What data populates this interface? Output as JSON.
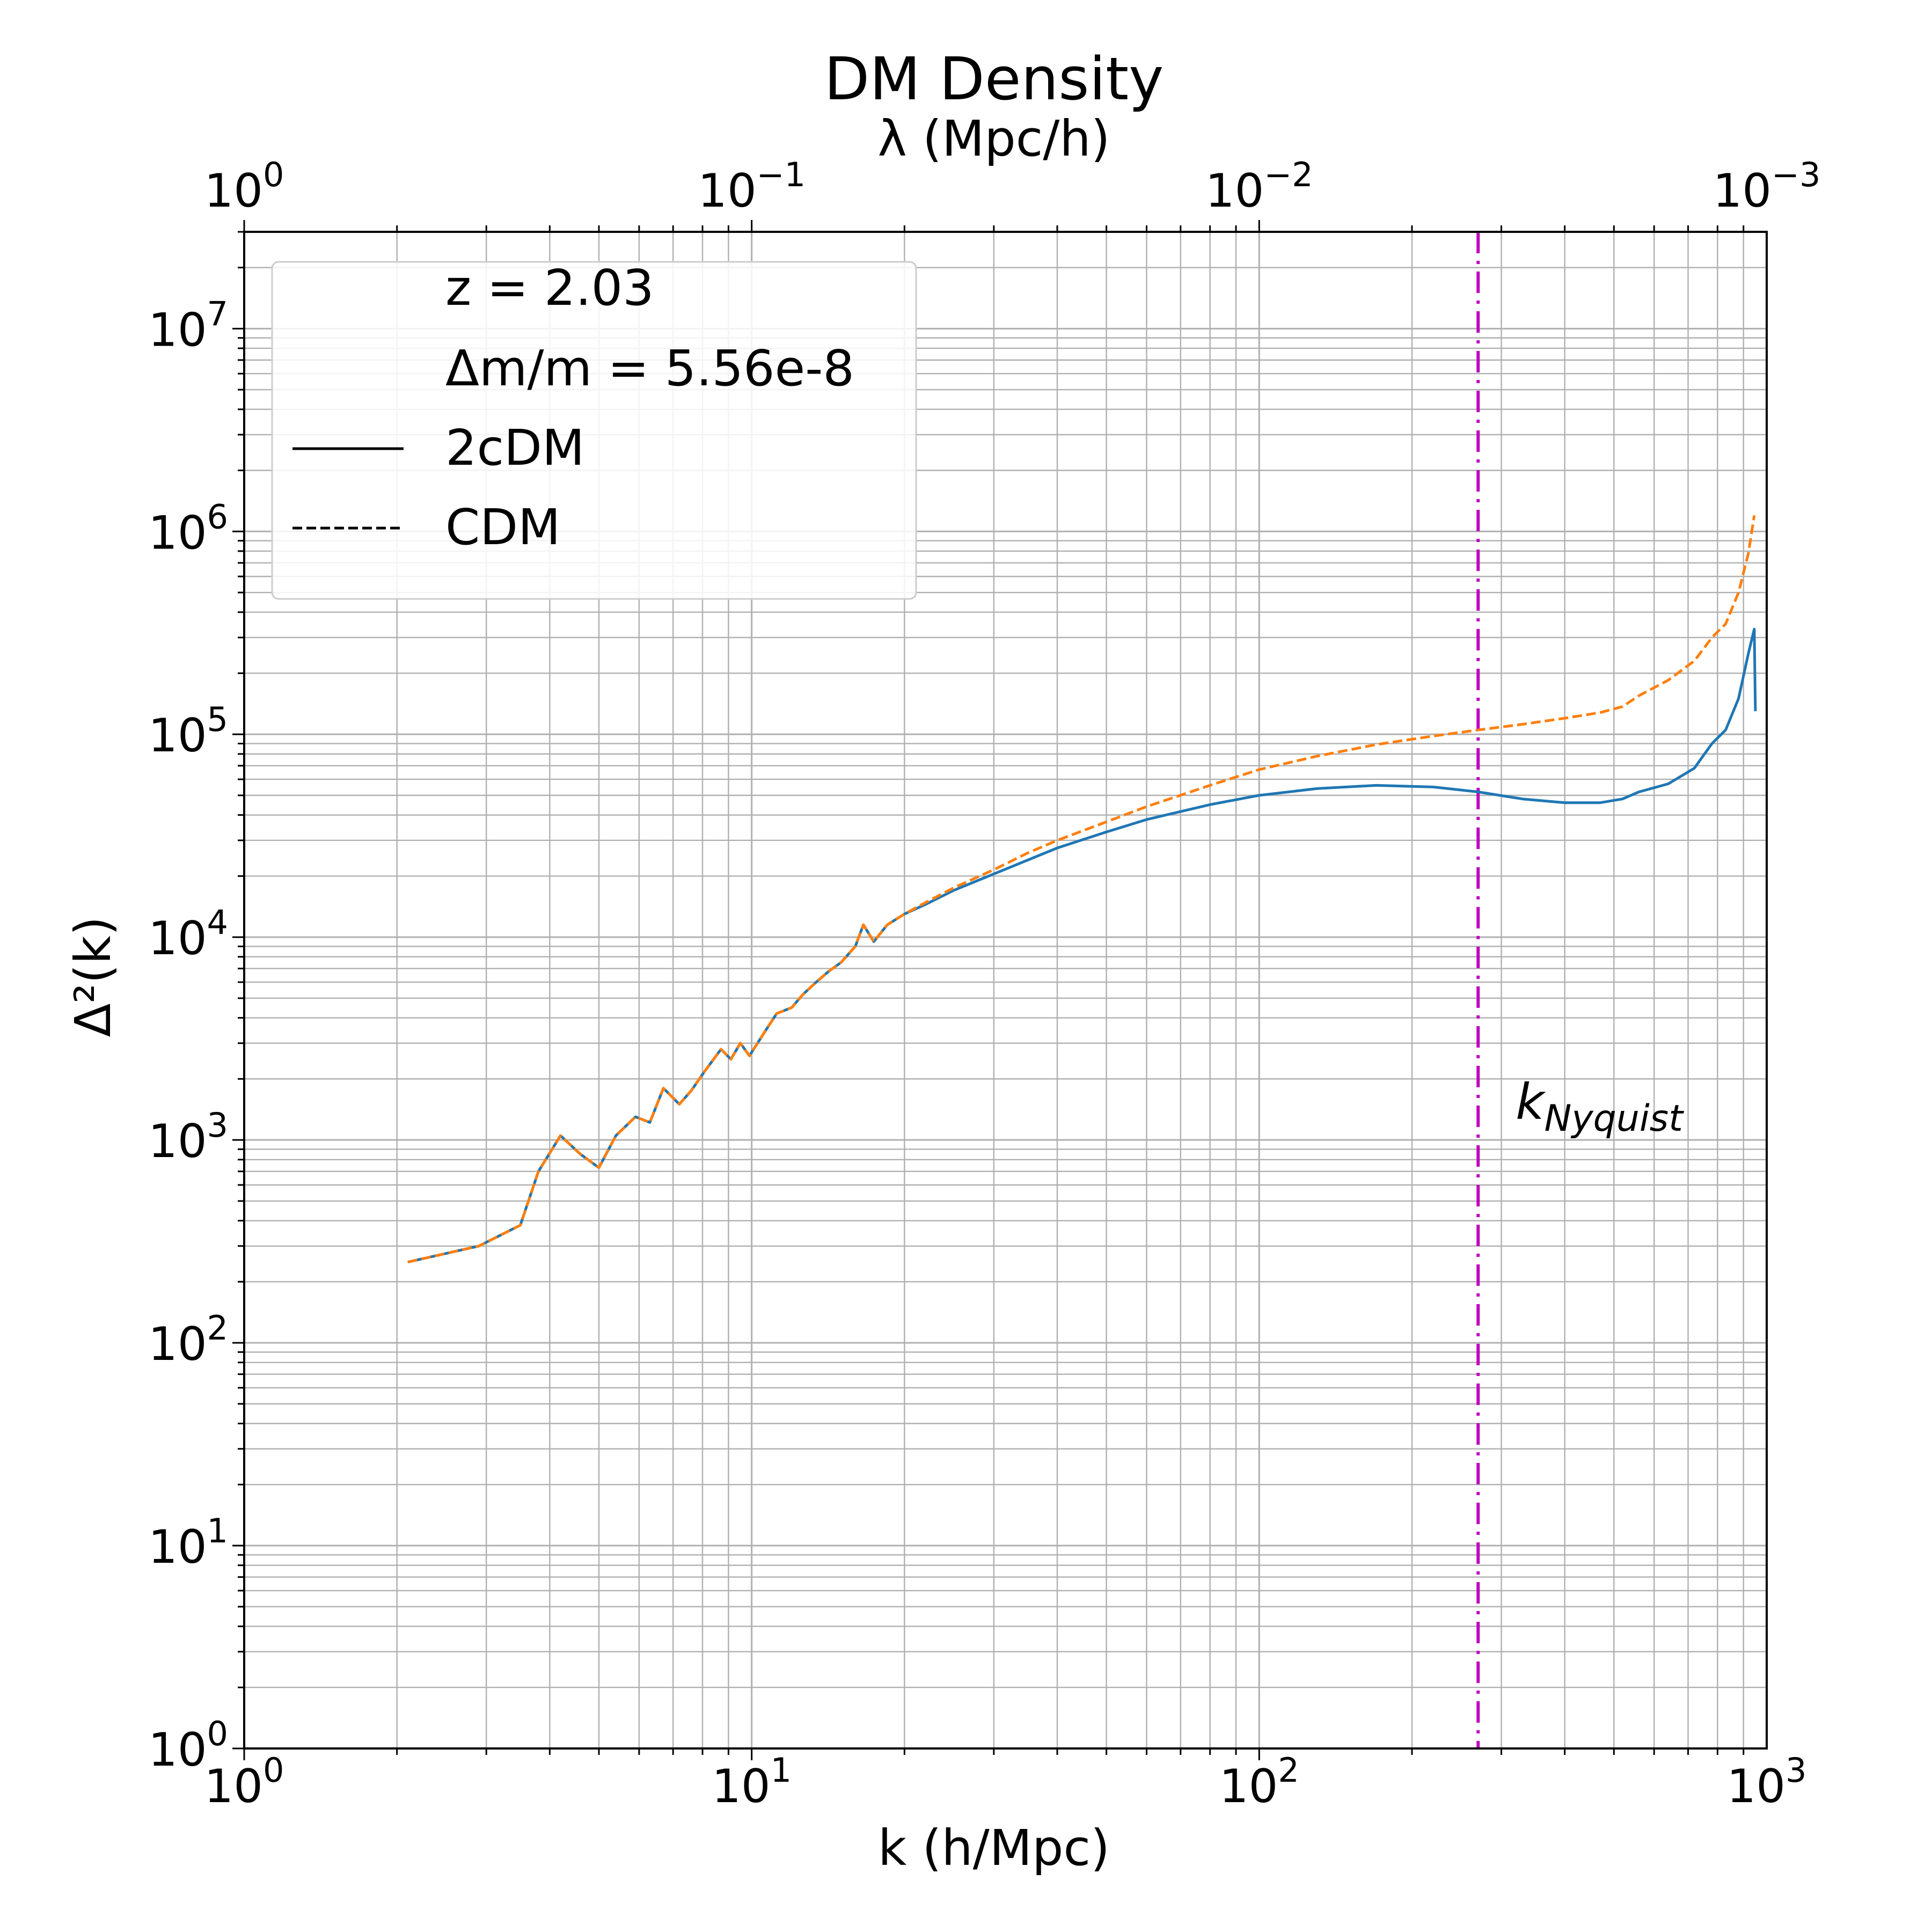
{
  "chart_data": {
    "type": "line",
    "title": "DM Density",
    "xlabel": "k (h/Mpc)",
    "ylabel": "Δ²(k)",
    "x2label": "λ (Mpc/h)",
    "xscale": "log",
    "yscale": "log",
    "xlim": [
      1,
      1000
    ],
    "ylim": [
      1,
      30000000
    ],
    "x_ticks": [
      {
        "value": 1,
        "label": "10^0"
      },
      {
        "value": 10,
        "label": "10^1"
      },
      {
        "value": 100,
        "label": "10^2"
      },
      {
        "value": 1000,
        "label": "10^3"
      }
    ],
    "x2_ticks": [
      {
        "value": 1,
        "label": "10^0"
      },
      {
        "value": 0.1,
        "label": "10^-1"
      },
      {
        "value": 0.01,
        "label": "10^-2"
      },
      {
        "value": 0.001,
        "label": "10^-3"
      }
    ],
    "y_ticks": [
      {
        "value": 1,
        "label": "10^0"
      },
      {
        "value": 10,
        "label": "10^1"
      },
      {
        "value": 100,
        "label": "10^2"
      },
      {
        "value": 1000,
        "label": "10^3"
      },
      {
        "value": 10000,
        "label": "10^4"
      },
      {
        "value": 100000,
        "label": "10^5"
      },
      {
        "value": 1000000,
        "label": "10^6"
      },
      {
        "value": 10000000,
        "label": "10^7"
      }
    ],
    "grid": true,
    "legend": {
      "placement": "upper-left",
      "entries": [
        {
          "label": "z = 2.03",
          "style": "none"
        },
        {
          "label": "Δm/m = 5.56e-8",
          "style": "none"
        },
        {
          "label": "2cDM",
          "style": "solid",
          "color": "#000000"
        },
        {
          "label": "CDM",
          "style": "dashed",
          "color": "#000000"
        }
      ]
    },
    "vline": {
      "x": 270,
      "color": "#bf00bf",
      "style": "dashdot",
      "label": "k_Nyquist"
    },
    "series": [
      {
        "name": "2cDM",
        "color": "#1f77b4",
        "style": "solid",
        "x": [
          2.1,
          2.9,
          3.5,
          3.8,
          4.2,
          4.6,
          5.0,
          5.4,
          5.9,
          6.3,
          6.7,
          7.2,
          7.6,
          8.1,
          8.7,
          9.1,
          9.5,
          9.9,
          10.6,
          11.2,
          12.0,
          12.6,
          13.4,
          14.2,
          15.0,
          16.0,
          16.6,
          17.4,
          18.5,
          20,
          22,
          25,
          30,
          35,
          40,
          50,
          60,
          80,
          100,
          130,
          170,
          220,
          270,
          330,
          400,
          470,
          520,
          560,
          640,
          720,
          780,
          830,
          880,
          920,
          945,
          950
        ],
        "y": [
          250,
          300,
          380,
          700,
          1050,
          850,
          730,
          1050,
          1300,
          1220,
          1800,
          1500,
          1750,
          2200,
          2800,
          2500,
          3000,
          2600,
          3400,
          4200,
          4500,
          5200,
          6000,
          6800,
          7500,
          9000,
          11500,
          9500,
          11500,
          13000,
          14500,
          17000,
          20500,
          24000,
          27500,
          33000,
          38000,
          45000,
          50000,
          54000,
          56000,
          55000,
          52000,
          48000,
          46000,
          46000,
          48000,
          52000,
          57000,
          68000,
          90000,
          105000,
          150000,
          250000,
          330000,
          130000
        ]
      },
      {
        "name": "CDM",
        "color": "#ff7f0e",
        "style": "dashed",
        "x": [
          2.1,
          2.9,
          3.5,
          3.8,
          4.2,
          4.6,
          5.0,
          5.4,
          5.9,
          6.3,
          6.7,
          7.2,
          7.6,
          8.1,
          8.7,
          9.1,
          9.5,
          9.9,
          10.6,
          11.2,
          12.0,
          12.6,
          13.4,
          14.2,
          15.0,
          16.0,
          16.6,
          17.4,
          18.5,
          20,
          22,
          25,
          30,
          35,
          40,
          50,
          60,
          80,
          100,
          130,
          170,
          220,
          270,
          330,
          400,
          470,
          520,
          560,
          640,
          720,
          780,
          830,
          880,
          920,
          945
        ],
        "y": [
          250,
          300,
          380,
          700,
          1050,
          850,
          730,
          1050,
          1300,
          1220,
          1800,
          1500,
          1750,
          2200,
          2800,
          2500,
          3000,
          2600,
          3400,
          4200,
          4500,
          5200,
          6000,
          6800,
          7500,
          9000,
          11500,
          9500,
          11500,
          13000,
          14800,
          17500,
          21500,
          26000,
          30000,
          37000,
          44000,
          56000,
          67000,
          78000,
          89000,
          98000,
          105000,
          112000,
          120000,
          128000,
          137000,
          155000,
          185000,
          230000,
          300000,
          350000,
          500000,
          780000,
          1200000
        ]
      }
    ]
  }
}
